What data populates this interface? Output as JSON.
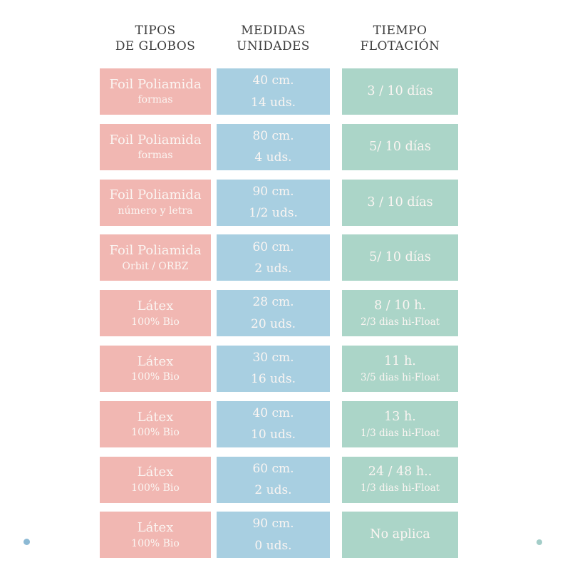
{
  "colors": {
    "pink": "#f1b7b2",
    "blue": "#a8cfe1",
    "green": "#abd5c8",
    "header_text": "#3d3d3d",
    "box_text": "#fbf5f2",
    "dot_left": "#8cb9d4",
    "dot_right": "#a3cdc8"
  },
  "headers": [
    {
      "line1": "TIPOS",
      "line2": "DE GLOBOS"
    },
    {
      "line1": "MEDIDAS",
      "line2": "UNIDADES"
    },
    {
      "line1": "TIEMPO",
      "line2": "FLOTACIÓN"
    }
  ],
  "table": {
    "rows": [
      {
        "type": [
          "Foil Poliamida",
          "formas"
        ],
        "size": [
          "40 cm.",
          "14 uds."
        ],
        "time": [
          "3 / 10 días",
          ""
        ]
      },
      {
        "type": [
          "Foil Poliamida",
          "formas"
        ],
        "size": [
          "80 cm.",
          "4 uds."
        ],
        "time": [
          "5/ 10 días",
          ""
        ]
      },
      {
        "type": [
          "Foil Poliamida",
          "número y letra"
        ],
        "size": [
          "90 cm.",
          "1/2 uds."
        ],
        "time": [
          "3 / 10 días",
          ""
        ]
      },
      {
        "type": [
          "Foil Poliamida",
          "Orbit / ORBZ"
        ],
        "size": [
          "60 cm.",
          "2 uds."
        ],
        "time": [
          "5/ 10 días",
          ""
        ]
      },
      {
        "type": [
          "Látex",
          "100% Bio"
        ],
        "size": [
          "28 cm.",
          "20 uds."
        ],
        "time": [
          "8 / 10 h.",
          "2/3 dias hi-Float"
        ]
      },
      {
        "type": [
          "Látex",
          "100% Bio"
        ],
        "size": [
          "30 cm.",
          "16 uds."
        ],
        "time": [
          "11 h.",
          "3/5 dias hi-Float"
        ]
      },
      {
        "type": [
          "Látex",
          "100% Bio"
        ],
        "size": [
          "40 cm.",
          "10 uds."
        ],
        "time": [
          "13 h.",
          "1/3 dias hi-Float"
        ]
      },
      {
        "type": [
          "Látex",
          "100% Bio"
        ],
        "size": [
          "60 cm.",
          "2 uds."
        ],
        "time": [
          "24 / 48 h..",
          "1/3 dias hi-Float"
        ]
      },
      {
        "type": [
          "Látex",
          "100% Bio"
        ],
        "size": [
          "90 cm.",
          "0 uds."
        ],
        "time": [
          "No aplica",
          ""
        ]
      }
    ]
  },
  "chart_data": {
    "type": "table",
    "title": "",
    "columns": [
      "TIPOS DE GLOBOS",
      "MEDIDAS UNIDADES",
      "TIEMPO FLOTACIÓN"
    ],
    "rows": [
      [
        "Foil Poliamida (formas)",
        "40 cm. / 14 uds.",
        "3 / 10 días"
      ],
      [
        "Foil Poliamida (formas)",
        "80 cm. / 4 uds.",
        "5/ 10 días"
      ],
      [
        "Foil Poliamida (número y letra)",
        "90 cm. / 1/2 uds.",
        "3 / 10 días"
      ],
      [
        "Foil Poliamida (Orbit / ORBZ)",
        "60 cm. / 2 uds.",
        "5/ 10 días"
      ],
      [
        "Látex (100% Bio)",
        "28 cm. / 20 uds.",
        "8 / 10 h. — 2/3 dias hi-Float"
      ],
      [
        "Látex (100% Bio)",
        "30 cm. / 16 uds.",
        "11 h. — 3/5 dias hi-Float"
      ],
      [
        "Látex (100% Bio)",
        "40 cm. / 10 uds.",
        "13 h. — 1/3 dias hi-Float"
      ],
      [
        "Látex (100% Bio)",
        "60 cm. / 2 uds.",
        "24 / 48 h.. — 1/3 dias hi-Float"
      ],
      [
        "Látex (100% Bio)",
        "90 cm. / 0 uds.",
        "No aplica"
      ]
    ],
    "layout": {
      "column_colors": [
        "pink",
        "blue",
        "green"
      ],
      "legend": "none",
      "grid": "off"
    }
  }
}
